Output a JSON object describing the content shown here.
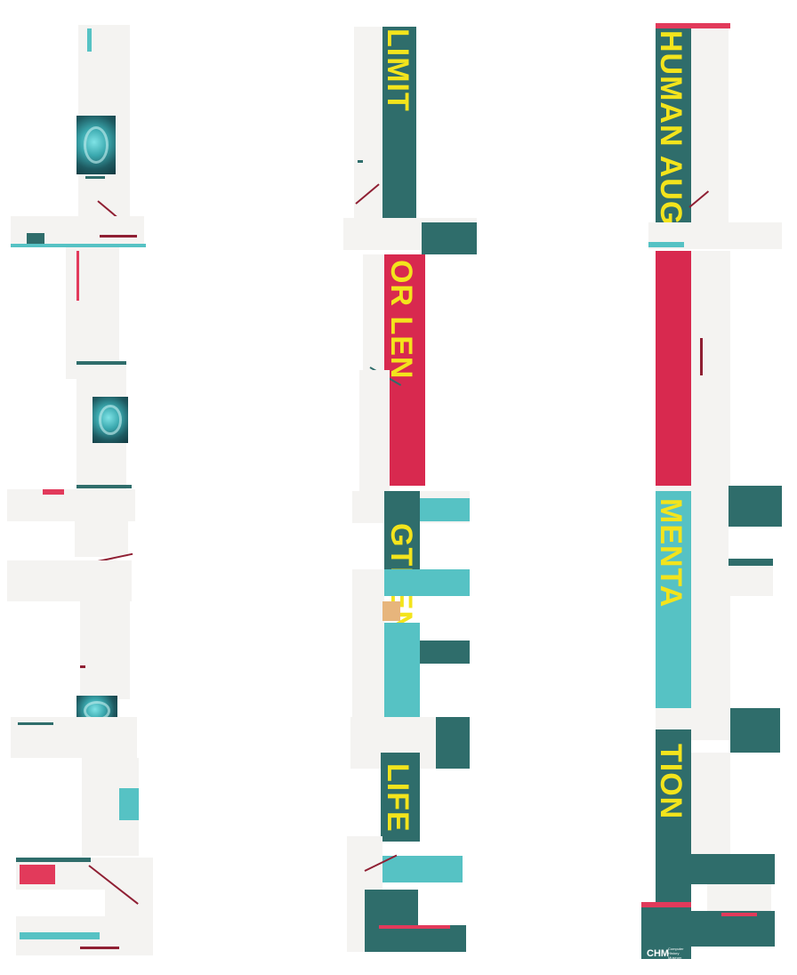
{
  "towers": [
    {
      "id": "tower-1",
      "words": []
    },
    {
      "id": "tower-2",
      "words": [
        {
          "id": "limit",
          "text": "LIMIT"
        },
        {
          "id": "or-len",
          "text": "OR LEN"
        },
        {
          "id": "gthen",
          "text": "GTHEN"
        },
        {
          "id": "life",
          "text": "LIFE"
        }
      ]
    },
    {
      "id": "tower-3",
      "words": [
        {
          "id": "human",
          "text": "HUMAN AUG"
        },
        {
          "id": "menta",
          "text": "MENTA"
        },
        {
          "id": "tion",
          "text": "TION"
        }
      ]
    }
  ],
  "logo": {
    "mark": "CHM",
    "sub": "Computer History Museum"
  },
  "colors": {
    "yellow": "#f3e41c",
    "teal": "#2f6d6b",
    "light_teal": "#56c2c4",
    "pink": "#e23a5b",
    "crimson": "#d8294f",
    "offwhite": "#f4f3f1"
  }
}
